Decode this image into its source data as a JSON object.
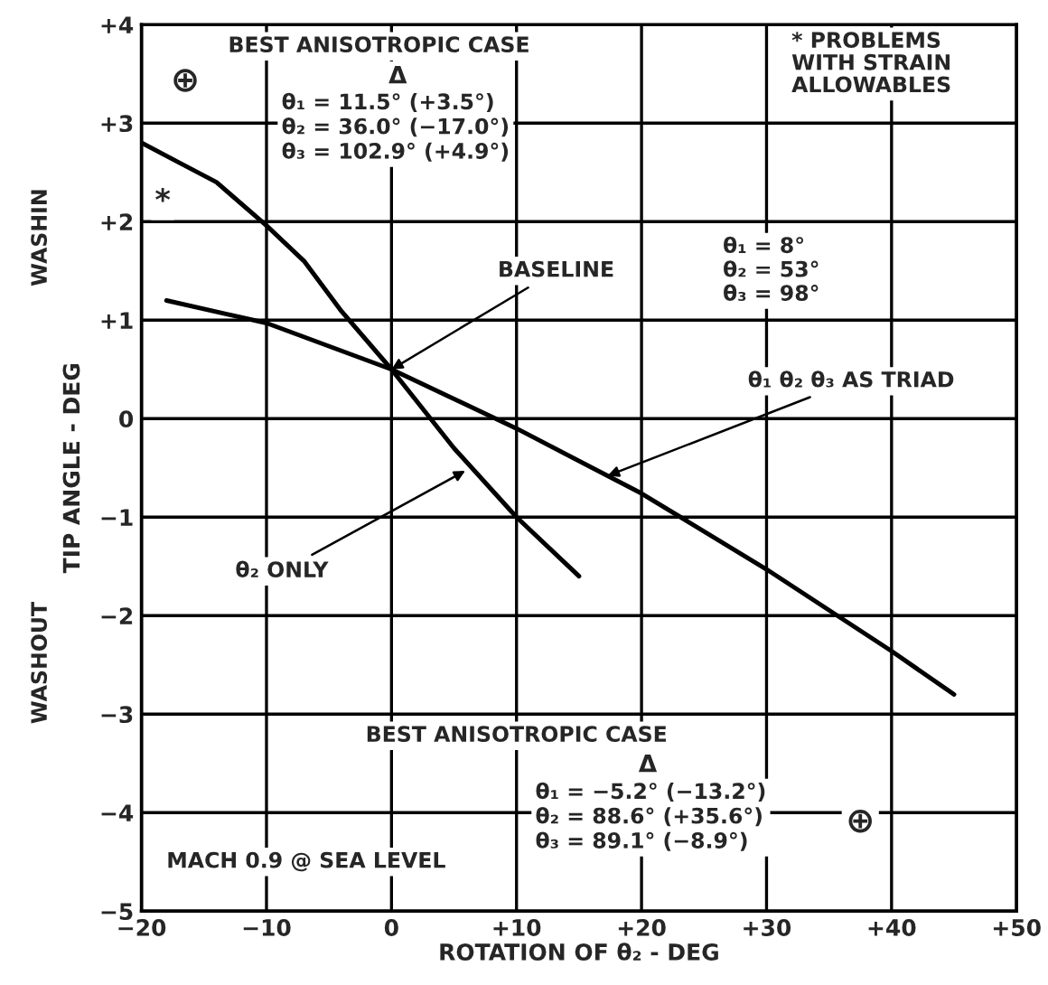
{
  "chart_data": {
    "type": "line",
    "xlabel": "ROTATION OF θ₂ - DEG",
    "ylabel": "TIP ANGLE - DEG",
    "series": [
      {
        "color": "#000000",
        "x": [
          -20,
          -17,
          -14,
          -10,
          -7,
          -4,
          0,
          5,
          10,
          15
        ],
        "values": [
          2.8,
          2.6,
          2.4,
          1.96,
          1.6,
          1.09,
          0.5,
          -0.3,
          -1.0,
          -1.6
        ]
      },
      {
        "color": "#000000",
        "x": [
          -18,
          -10,
          0,
          10,
          20,
          30,
          40,
          45
        ],
        "values": [
          1.2,
          0.97,
          0.5,
          -0.1,
          -0.76,
          -1.53,
          -2.36,
          -2.8
        ]
      }
    ],
    "annotations": [
      "BEST ANISOTROPIC CASE",
      "Δ",
      "θ₁ = 11.5° (+3.5°)\nθ₂ = 36.0° (−17.0°)\nθ₃ = 102.9° (+4.9°)",
      "⊕",
      "*",
      "* PROBLEMS\nWITH STRAIN\nALLOWABLES",
      {
        "text": "BASELINE",
        "x": 0,
        "y": 0.5
      },
      "θ₁ = 8°\nθ₂ = 53°\nθ₃ = 98°",
      {
        "text": "θ₁ θ₂ θ₃ AS TRIAD",
        "x": 17.3,
        "y": -0.58
      },
      {
        "text": "θ₂ ONLY",
        "x": 5.9,
        "y": -0.53
      },
      "WASHIN",
      "WASHOUT",
      "BEST ANISOTROPIC CASE",
      "Δ",
      "θ₁ = −5.2° (−13.2°)\nθ₂ = 88.6° (+35.6°)\nθ₃ = 89.1° (−8.9°)",
      "⊕",
      "MACH 0.9 @ SEA LEVEL"
    ],
    "xlim": [
      -20,
      50
    ],
    "xticks": [
      {
        "value": -20,
        "label": "−20"
      },
      {
        "value": -10,
        "label": "−10"
      },
      0,
      {
        "value": 10,
        "label": "+10"
      },
      {
        "value": 20,
        "label": "+20"
      },
      {
        "value": 30,
        "label": "+30"
      },
      {
        "value": 40,
        "label": "+40"
      },
      {
        "value": 50,
        "label": "+50"
      }
    ],
    "ylim": [
      -5,
      4
    ],
    "yticks": [
      {
        "value": -5,
        "label": "−5"
      },
      {
        "value": -4,
        "label": "−4"
      },
      {
        "value": -3,
        "label": "−3"
      },
      {
        "value": -2,
        "label": "−2"
      },
      {
        "value": -1,
        "label": "−1"
      },
      0,
      {
        "value": 1,
        "label": "+1"
      },
      {
        "value": 2,
        "label": "+2"
      },
      {
        "value": 3,
        "label": "+3"
      },
      {
        "value": 4,
        "label": "+4"
      }
    ],
    "grid": true,
    "legend": false,
    "marker": "none",
    "line_style": "solid"
  }
}
